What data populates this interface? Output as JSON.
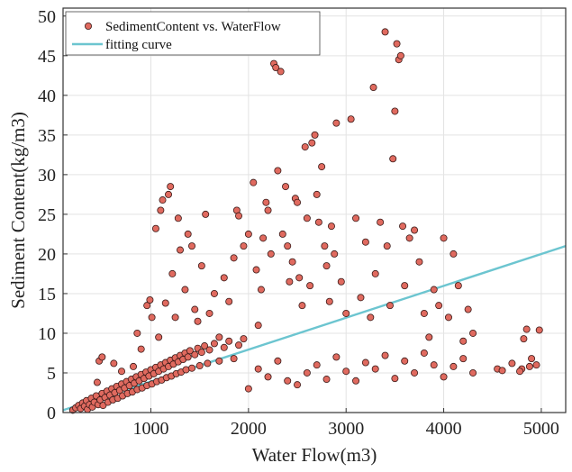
{
  "chart_data": {
    "type": "scatter",
    "xlabel": "Water Flow(m3)",
    "ylabel": "Sediment Content(kg/m3)",
    "xlim": [
      100,
      5250
    ],
    "ylim": [
      0,
      51
    ],
    "xticks": [
      1000,
      2000,
      3000,
      4000,
      5000
    ],
    "yticks": [
      0,
      5,
      10,
      15,
      20,
      25,
      30,
      35,
      40,
      45,
      50
    ],
    "grid": true,
    "legend_position": "top-left",
    "series": [
      {
        "name": "SedimentContent vs. WaterFlow",
        "kind": "scatter",
        "color": "#e06a5f",
        "edge_color": "#3a1a18",
        "points": [
          [
            200,
            0.3
          ],
          [
            230,
            0.6
          ],
          [
            260,
            0.9
          ],
          [
            280,
            0.5
          ],
          [
            300,
            1.2
          ],
          [
            320,
            0.8
          ],
          [
            340,
            1.5
          ],
          [
            350,
            0.4
          ],
          [
            370,
            1.0
          ],
          [
            390,
            1.8
          ],
          [
            400,
            0.7
          ],
          [
            420,
            1.3
          ],
          [
            440,
            2.1
          ],
          [
            460,
            1.0
          ],
          [
            480,
            1.6
          ],
          [
            500,
            2.4
          ],
          [
            510,
            0.9
          ],
          [
            530,
            1.9
          ],
          [
            550,
            2.7
          ],
          [
            560,
            1.3
          ],
          [
            580,
            2.2
          ],
          [
            600,
            3.0
          ],
          [
            610,
            1.6
          ],
          [
            630,
            2.5
          ],
          [
            650,
            3.3
          ],
          [
            660,
            1.8
          ],
          [
            680,
            2.8
          ],
          [
            700,
            3.6
          ],
          [
            710,
            2.1
          ],
          [
            730,
            3.1
          ],
          [
            750,
            3.9
          ],
          [
            760,
            2.4
          ],
          [
            780,
            3.4
          ],
          [
            800,
            4.2
          ],
          [
            810,
            2.6
          ],
          [
            830,
            3.7
          ],
          [
            850,
            4.5
          ],
          [
            860,
            2.9
          ],
          [
            880,
            4.0
          ],
          [
            900,
            4.8
          ],
          [
            910,
            3.1
          ],
          [
            930,
            4.3
          ],
          [
            950,
            5.1
          ],
          [
            960,
            3.4
          ],
          [
            980,
            4.6
          ],
          [
            1000,
            5.4
          ],
          [
            1010,
            3.6
          ],
          [
            1030,
            4.9
          ],
          [
            1050,
            5.7
          ],
          [
            1060,
            3.9
          ],
          [
            1080,
            5.2
          ],
          [
            1100,
            6.0
          ],
          [
            1110,
            4.1
          ],
          [
            1130,
            5.5
          ],
          [
            1150,
            6.3
          ],
          [
            1160,
            4.4
          ],
          [
            1180,
            5.8
          ],
          [
            1200,
            6.6
          ],
          [
            1210,
            4.6
          ],
          [
            1230,
            6.1
          ],
          [
            1250,
            6.9
          ],
          [
            1260,
            4.9
          ],
          [
            1280,
            6.4
          ],
          [
            1300,
            7.2
          ],
          [
            1310,
            5.1
          ],
          [
            1330,
            6.7
          ],
          [
            1350,
            7.5
          ],
          [
            1360,
            5.4
          ],
          [
            1380,
            7.0
          ],
          [
            1400,
            7.8
          ],
          [
            1420,
            5.6
          ],
          [
            1450,
            7.3
          ],
          [
            1480,
            8.1
          ],
          [
            1500,
            5.9
          ],
          [
            1520,
            7.6
          ],
          [
            1550,
            8.4
          ],
          [
            1580,
            6.2
          ],
          [
            1600,
            7.9
          ],
          [
            1650,
            8.7
          ],
          [
            1700,
            6.5
          ],
          [
            1750,
            8.2
          ],
          [
            1800,
            9.0
          ],
          [
            1850,
            6.8
          ],
          [
            1900,
            8.5
          ],
          [
            1950,
            9.3
          ],
          [
            450,
            3.8
          ],
          [
            470,
            6.5
          ],
          [
            500,
            7.0
          ],
          [
            620,
            6.2
          ],
          [
            700,
            5.2
          ],
          [
            820,
            5.8
          ],
          [
            860,
            10.0
          ],
          [
            900,
            8.0
          ],
          [
            960,
            13.5
          ],
          [
            990,
            14.2
          ],
          [
            1010,
            12.0
          ],
          [
            1050,
            23.2
          ],
          [
            1080,
            9.5
          ],
          [
            1100,
            25.5
          ],
          [
            1120,
            26.8
          ],
          [
            1150,
            13.8
          ],
          [
            1180,
            27.5
          ],
          [
            1200,
            28.5
          ],
          [
            1220,
            17.5
          ],
          [
            1250,
            12.0
          ],
          [
            1280,
            24.5
          ],
          [
            1300,
            20.5
          ],
          [
            1350,
            15.5
          ],
          [
            1380,
            22.5
          ],
          [
            1420,
            21.0
          ],
          [
            1450,
            13.0
          ],
          [
            1480,
            11.5
          ],
          [
            1520,
            18.5
          ],
          [
            1560,
            25.0
          ],
          [
            1600,
            12.5
          ],
          [
            1650,
            15.0
          ],
          [
            1700,
            9.5
          ],
          [
            1750,
            17.0
          ],
          [
            1800,
            14.0
          ],
          [
            1850,
            19.5
          ],
          [
            1880,
            25.5
          ],
          [
            1900,
            24.8
          ],
          [
            1950,
            21.0
          ],
          [
            2000,
            22.5
          ],
          [
            2050,
            29.0
          ],
          [
            2080,
            18.0
          ],
          [
            2100,
            11.0
          ],
          [
            2130,
            15.5
          ],
          [
            2150,
            22.0
          ],
          [
            2180,
            26.5
          ],
          [
            2200,
            25.5
          ],
          [
            2230,
            20.0
          ],
          [
            2260,
            44.0
          ],
          [
            2280,
            43.5
          ],
          [
            2300,
            30.5
          ],
          [
            2310,
            46.0
          ],
          [
            2330,
            43.0
          ],
          [
            2350,
            22.5
          ],
          [
            2380,
            28.5
          ],
          [
            2400,
            21.0
          ],
          [
            2420,
            16.5
          ],
          [
            2450,
            19.0
          ],
          [
            2480,
            27.0
          ],
          [
            2500,
            26.5
          ],
          [
            2520,
            17.0
          ],
          [
            2550,
            13.5
          ],
          [
            2580,
            33.5
          ],
          [
            2600,
            24.5
          ],
          [
            2630,
            16.0
          ],
          [
            2650,
            34.0
          ],
          [
            2680,
            35.0
          ],
          [
            2700,
            27.5
          ],
          [
            2720,
            24.0
          ],
          [
            2750,
            31.0
          ],
          [
            2780,
            21.0
          ],
          [
            2800,
            18.5
          ],
          [
            2830,
            14.0
          ],
          [
            2850,
            23.5
          ],
          [
            2880,
            20.0
          ],
          [
            2900,
            36.5
          ],
          [
            2950,
            16.5
          ],
          [
            3000,
            12.5
          ],
          [
            3050,
            37.0
          ],
          [
            3100,
            24.5
          ],
          [
            3150,
            14.5
          ],
          [
            3200,
            21.5
          ],
          [
            3250,
            12.0
          ],
          [
            3280,
            41.0
          ],
          [
            3300,
            17.5
          ],
          [
            3350,
            24.0
          ],
          [
            3400,
            48.0
          ],
          [
            3420,
            21.0
          ],
          [
            3450,
            13.5
          ],
          [
            3480,
            32.0
          ],
          [
            3500,
            38.0
          ],
          [
            3520,
            46.5
          ],
          [
            3540,
            44.5
          ],
          [
            3560,
            45.0
          ],
          [
            3580,
            23.5
          ],
          [
            3600,
            16.0
          ],
          [
            3650,
            22.0
          ],
          [
            3700,
            23.0
          ],
          [
            3750,
            19.0
          ],
          [
            3800,
            12.5
          ],
          [
            3850,
            9.5
          ],
          [
            3900,
            15.5
          ],
          [
            3950,
            13.5
          ],
          [
            4000,
            22.0
          ],
          [
            4050,
            12.0
          ],
          [
            4100,
            20.0
          ],
          [
            4150,
            16.0
          ],
          [
            4200,
            9.0
          ],
          [
            4250,
            13.0
          ],
          [
            4300,
            10.0
          ],
          [
            2000,
            3.0
          ],
          [
            2100,
            5.5
          ],
          [
            2200,
            4.5
          ],
          [
            2300,
            6.5
          ],
          [
            2400,
            4.0
          ],
          [
            2500,
            3.5
          ],
          [
            2600,
            5.0
          ],
          [
            2700,
            6.0
          ],
          [
            2800,
            4.2
          ],
          [
            2900,
            7.0
          ],
          [
            3000,
            5.2
          ],
          [
            3100,
            4.0
          ],
          [
            3200,
            6.3
          ],
          [
            3300,
            5.5
          ],
          [
            3400,
            7.2
          ],
          [
            3500,
            4.3
          ],
          [
            3600,
            6.5
          ],
          [
            3700,
            5.0
          ],
          [
            3800,
            7.5
          ],
          [
            3900,
            6.0
          ],
          [
            4000,
            4.5
          ],
          [
            4100,
            5.8
          ],
          [
            4200,
            6.8
          ],
          [
            4300,
            5.0
          ],
          [
            4550,
            5.5
          ],
          [
            4600,
            5.3
          ],
          [
            4700,
            6.2
          ],
          [
            4800,
            5.5
          ],
          [
            4850,
            10.5
          ],
          [
            4900,
            6.8
          ],
          [
            4950,
            6.0
          ],
          [
            4980,
            10.4
          ],
          [
            4820,
            9.3
          ],
          [
            4780,
            5.2
          ],
          [
            4880,
            5.8
          ]
        ]
      },
      {
        "name": "fitting curve",
        "kind": "line",
        "color": "#6cc5d0",
        "x": [
          100,
          5250
        ],
        "y": [
          0.3,
          21.0
        ]
      }
    ]
  }
}
